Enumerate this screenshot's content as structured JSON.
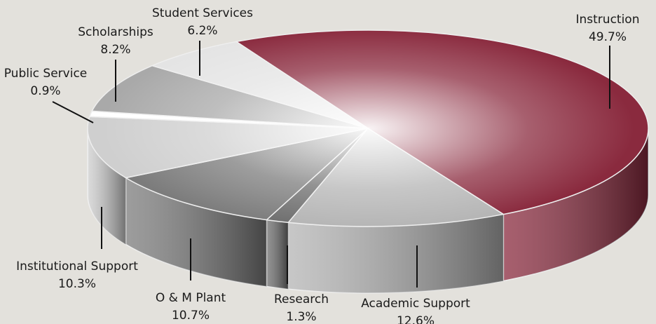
{
  "chart_data": {
    "type": "pie",
    "categories": [
      "Instruction",
      "Academic Support",
      "Research",
      "O & M Plant",
      "Institutional Support",
      "Public Service",
      "Scholarships",
      "Student Services"
    ],
    "values": [
      49.7,
      12.6,
      1.3,
      10.7,
      10.3,
      0.9,
      8.2,
      6.2
    ],
    "value_labels": [
      "49.7%",
      "12.6%",
      "1.3%",
      "10.7%",
      "10.3%",
      "0.9%",
      "8.2%",
      "6.2%"
    ],
    "colors": [
      "#8a2a3e",
      "#b4b4b4",
      "#6e6e6e",
      "#7c7c7c",
      "#cfcfcf",
      "#ffffff",
      "#a9a9a9",
      "#e4e4e4"
    ]
  }
}
